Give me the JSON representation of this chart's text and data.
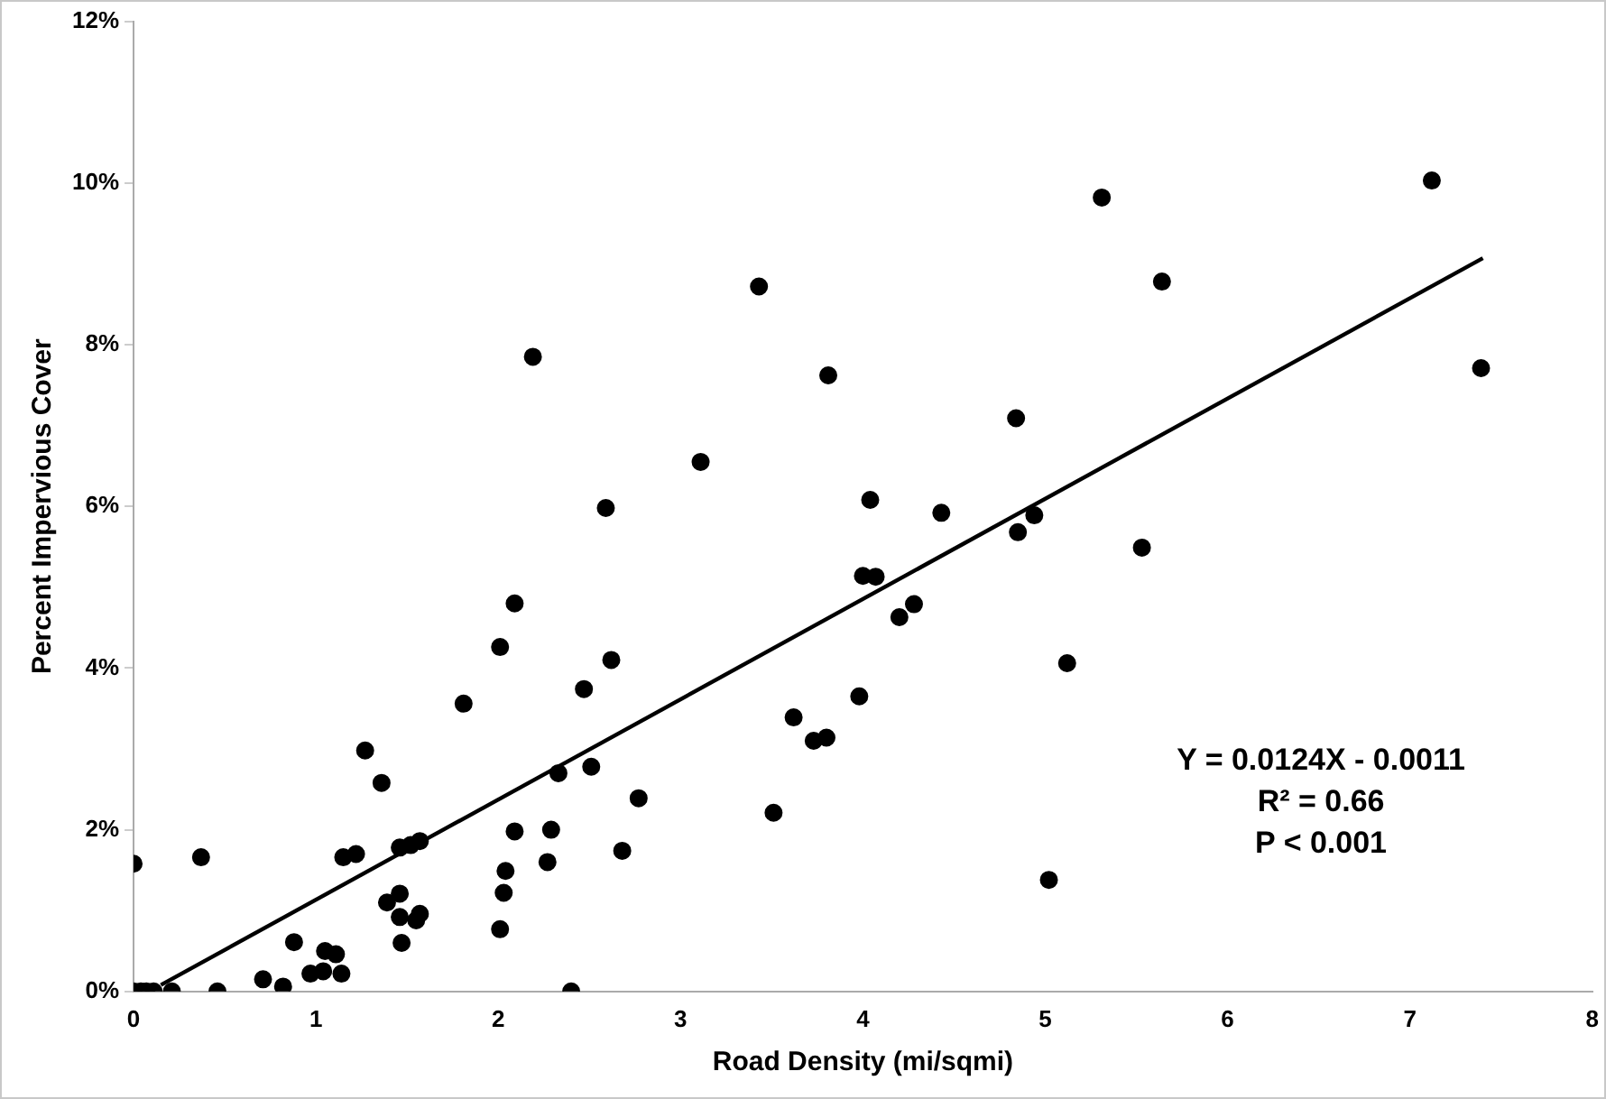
{
  "chart_data": {
    "type": "scatter",
    "xlabel": "Road Density (mi/sqmi)",
    "ylabel": "Percent Impervious Cover",
    "xlim": [
      0,
      8
    ],
    "xticks": [
      0,
      1,
      2,
      3,
      4,
      5,
      6,
      7,
      8
    ],
    "ylim": [
      0,
      12
    ],
    "yticks": [
      {
        "value": 0,
        "label": "0%"
      },
      {
        "value": 2,
        "label": "2%"
      },
      {
        "value": 4,
        "label": "4%"
      },
      {
        "value": 6,
        "label": "6%"
      },
      {
        "value": 8,
        "label": "8%"
      },
      {
        "value": 10,
        "label": "10%"
      },
      {
        "value": 12,
        "label": "12%"
      }
    ],
    "grid": false,
    "legend": false,
    "annotations": [
      "Y = 0.0124X - 0.0011",
      "R² = 0.66",
      "P < 0.001"
    ],
    "series": [
      {
        "marker": "circle",
        "color": "#000000",
        "x": [
          0,
          0,
          0.04,
          0.07,
          0.11,
          0.21,
          0.46,
          0.37,
          0.71,
          0.82,
          0.88,
          0.97,
          1.04,
          1.05,
          1.11,
          1.14,
          1.15,
          1.22,
          1.27,
          1.36,
          1.39,
          1.46,
          1.46,
          1.47,
          1.46,
          1.52,
          1.57,
          1.55,
          1.57,
          1.81,
          2.01,
          2.09,
          2.01,
          2.03,
          2.04,
          2.09,
          2.27,
          2.29,
          2.33,
          2.4,
          2.47,
          2.51,
          2.19,
          2.59,
          2.62,
          2.77,
          2.68,
          3.43,
          3.81,
          3.11,
          4.04,
          4.43,
          4.84,
          4.85,
          4.94,
          4.0,
          4.07,
          4.2,
          4.28,
          3.51,
          3.62,
          3.73,
          3.8,
          3.98,
          5.12,
          5.02,
          5.31,
          7.12,
          5.64,
          7.39,
          5.53
        ],
        "values": [
          1.58,
          0,
          0,
          0,
          0,
          0,
          0,
          1.66,
          0.15,
          0.06,
          0.61,
          0.22,
          0.25,
          0.5,
          0.46,
          0.22,
          1.66,
          1.7,
          2.98,
          2.58,
          1.1,
          1.21,
          0.92,
          0.6,
          1.78,
          1.81,
          1.86,
          0.88,
          0.96,
          3.56,
          4.26,
          4.8,
          0.77,
          1.22,
          1.49,
          1.98,
          1.6,
          2.0,
          2.7,
          0,
          3.74,
          2.78,
          7.85,
          5.98,
          4.1,
          2.39,
          1.74,
          8.72,
          7.62,
          6.55,
          6.08,
          5.92,
          7.09,
          5.68,
          5.89,
          5.14,
          5.13,
          4.63,
          4.79,
          2.21,
          3.39,
          3.1,
          3.14,
          3.65,
          4.06,
          1.38,
          9.82,
          10.03,
          8.78,
          7.71,
          5.49
        ]
      },
      {
        "type": "line",
        "color": "#000000",
        "x": [
          0.15,
          7.4
        ],
        "values": [
          0.08,
          9.07
        ]
      }
    ]
  }
}
